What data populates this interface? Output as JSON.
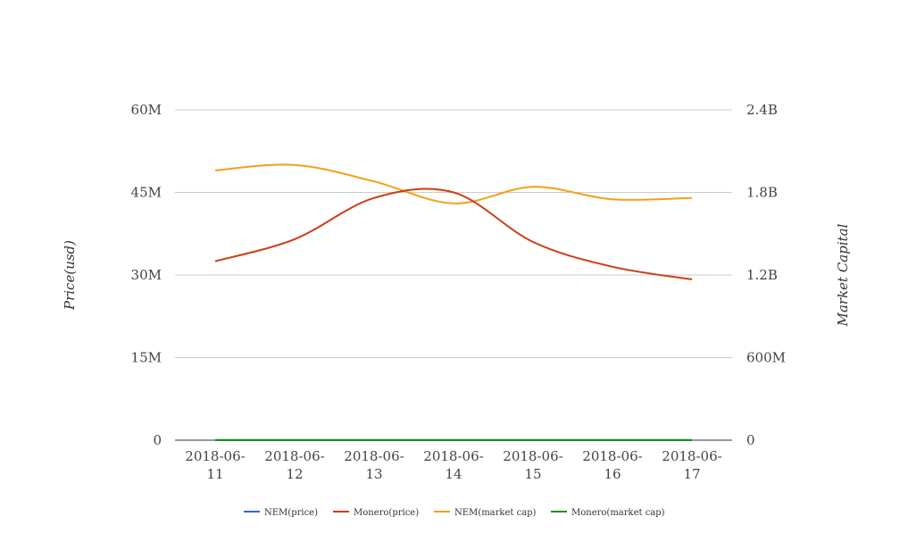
{
  "chart_data": {
    "type": "line",
    "title": "",
    "categories": [
      "2018-06-11",
      "2018-06-12",
      "2018-06-13",
      "2018-06-14",
      "2018-06-15",
      "2018-06-16",
      "2018-06-17"
    ],
    "category_lines": [
      [
        "2018-06-",
        "11"
      ],
      [
        "2018-06-",
        "12"
      ],
      [
        "2018-06-",
        "13"
      ],
      [
        "2018-06-",
        "14"
      ],
      [
        "2018-06-",
        "15"
      ],
      [
        "2018-06-",
        "16"
      ],
      [
        "2018-06-",
        "17"
      ]
    ],
    "ylabel_left": "Price(usd)",
    "ylabel_right": "Market Capital",
    "ylim_left": [
      0,
      60000000
    ],
    "ylim_right": [
      0,
      2400000000
    ],
    "left_ticks": [
      "0",
      "15M",
      "30M",
      "45M",
      "60M"
    ],
    "right_ticks": [
      "0",
      "600M",
      "1.2B",
      "1.8B",
      "2.4B"
    ],
    "grid": true,
    "legend_position": "bottom",
    "series": [
      {
        "name": "NEM(price)",
        "axis": "left",
        "color": "#3366cc",
        "values": [
          0.2,
          0.2,
          0.2,
          0.2,
          0.2,
          0.2,
          0.2
        ]
      },
      {
        "name": "Monero(price)",
        "axis": "left",
        "color": "#cc3d16",
        "values": [
          32500000,
          36500000,
          44000000,
          45000000,
          36000000,
          31500000,
          29200000
        ]
      },
      {
        "name": "NEM(market cap)",
        "axis": "right",
        "color": "#f59f1a",
        "values": [
          1960000000,
          2000000000,
          1880000000,
          1720000000,
          1840000000,
          1750000000,
          1760000000
        ]
      },
      {
        "name": "Monero(market cap)",
        "axis": "right",
        "color": "#189118",
        "values": [
          2000000,
          2000000,
          2000000,
          2000000,
          2000000,
          2000000,
          2000000
        ]
      }
    ]
  }
}
